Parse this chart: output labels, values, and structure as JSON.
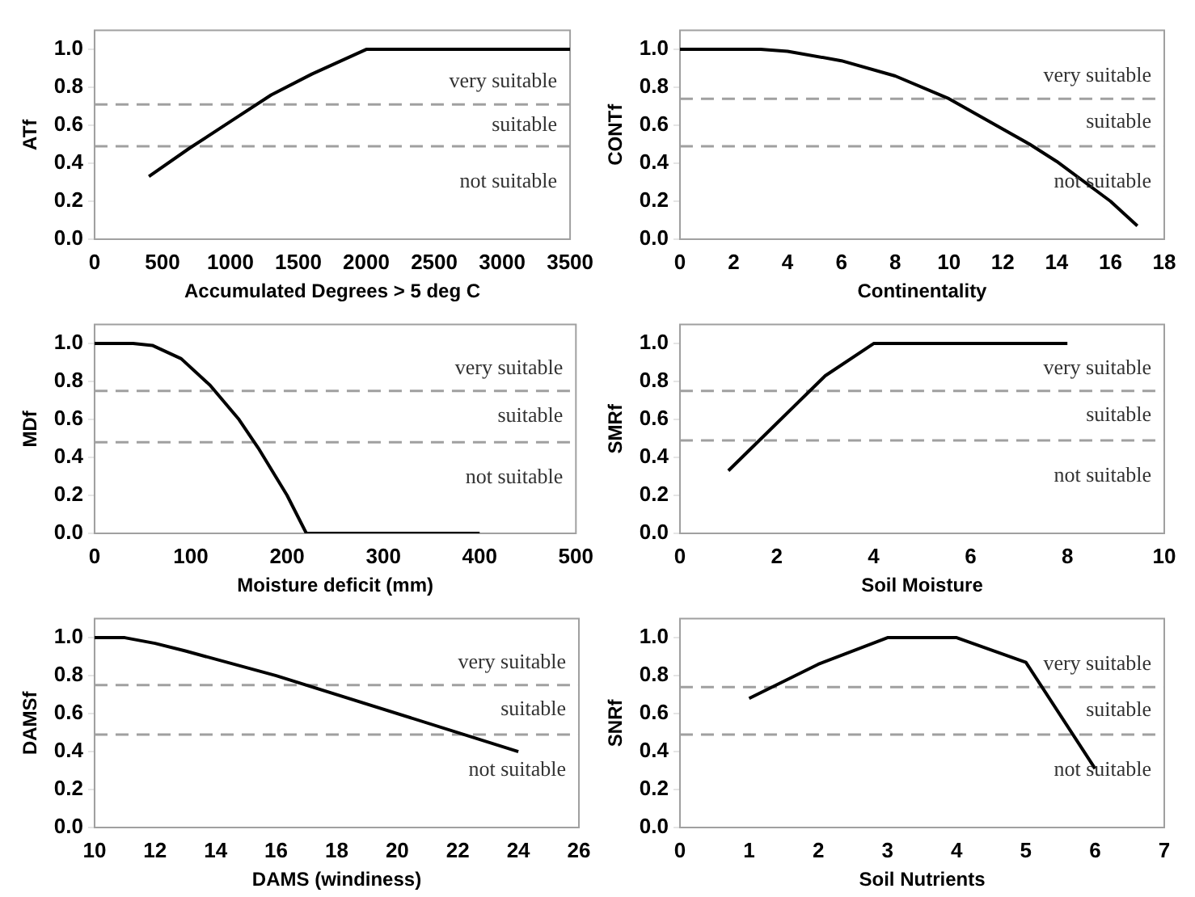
{
  "chart_data": [
    {
      "type": "line",
      "xlabel": "Accumulated Degrees > 5 deg C",
      "ylabel": "ATf",
      "color": "#000000",
      "marker": "none",
      "grid": false,
      "x": [
        400,
        700,
        1000,
        1300,
        1600,
        2000,
        3500
      ],
      "values": [
        0.33,
        0.48,
        0.62,
        0.76,
        0.87,
        1.0,
        1.0
      ],
      "xlim": [
        0,
        3500
      ],
      "xticks": [
        0,
        500,
        1000,
        1500,
        2000,
        2500,
        3000,
        3500
      ],
      "ylim": [
        0,
        1.1
      ],
      "yticks": [
        {
          "value": 0,
          "label": "0.0"
        },
        {
          "value": 0.2,
          "label": "0.2"
        },
        {
          "value": 0.4,
          "label": "0.4"
        },
        {
          "value": 0.6,
          "label": "0.6"
        },
        {
          "value": 0.8,
          "label": "0.8"
        },
        {
          "value": 1,
          "label": "1.0"
        }
      ],
      "ref_lines": [
        {
          "axis": "y",
          "value": 0.71,
          "color": "#a0a0a0",
          "line_style": "dashed"
        },
        {
          "axis": "y",
          "value": 0.49,
          "color": "#a0a0a0",
          "line_style": "dashed"
        }
      ],
      "annotations": [
        "very suitable",
        "suitable",
        "not suitable"
      ]
    },
    {
      "type": "line",
      "xlabel": "Continentality",
      "ylabel": "CONTf",
      "color": "#000000",
      "marker": "none",
      "grid": false,
      "x": [
        0,
        3,
        4,
        6,
        8,
        10,
        12,
        13,
        14,
        16,
        17
      ],
      "values": [
        1.0,
        1.0,
        0.99,
        0.94,
        0.86,
        0.74,
        0.58,
        0.5,
        0.41,
        0.2,
        0.07
      ],
      "xlim": [
        0,
        18
      ],
      "xticks": [
        0,
        2,
        4,
        6,
        8,
        10,
        12,
        14,
        16,
        18
      ],
      "ylim": [
        0,
        1.1
      ],
      "yticks": [
        {
          "value": 0,
          "label": "0.0"
        },
        {
          "value": 0.2,
          "label": "0.2"
        },
        {
          "value": 0.4,
          "label": "0.4"
        },
        {
          "value": 0.6,
          "label": "0.6"
        },
        {
          "value": 0.8,
          "label": "0.8"
        },
        {
          "value": 1,
          "label": "1.0"
        }
      ],
      "ref_lines": [
        {
          "axis": "y",
          "value": 0.74,
          "color": "#a0a0a0",
          "line_style": "dashed"
        },
        {
          "axis": "y",
          "value": 0.49,
          "color": "#a0a0a0",
          "line_style": "dashed"
        }
      ],
      "annotations": [
        "very suitable",
        "suitable",
        "not suitable"
      ]
    },
    {
      "type": "line",
      "xlabel": "Moisture deficit (mm)",
      "ylabel": "MDf",
      "color": "#000000",
      "marker": "none",
      "grid": false,
      "x": [
        0,
        40,
        60,
        90,
        120,
        150,
        170,
        200,
        220,
        400
      ],
      "values": [
        1.0,
        1.0,
        0.99,
        0.92,
        0.78,
        0.6,
        0.45,
        0.2,
        0.0,
        0.0
      ],
      "xlim": [
        0,
        500
      ],
      "xticks": [
        0,
        100,
        200,
        300,
        400,
        500
      ],
      "ylim": [
        0,
        1.1
      ],
      "yticks": [
        {
          "value": 0,
          "label": "0.0"
        },
        {
          "value": 0.2,
          "label": "0.2"
        },
        {
          "value": 0.4,
          "label": "0.4"
        },
        {
          "value": 0.6,
          "label": "0.6"
        },
        {
          "value": 0.8,
          "label": "0.8"
        },
        {
          "value": 1,
          "label": "1.0"
        }
      ],
      "ref_lines": [
        {
          "axis": "y",
          "value": 0.75,
          "color": "#a0a0a0",
          "line_style": "dashed"
        },
        {
          "axis": "y",
          "value": 0.48,
          "color": "#a0a0a0",
          "line_style": "dashed"
        }
      ],
      "annotations": [
        "very suitable",
        "suitable",
        "not suitable"
      ]
    },
    {
      "type": "line",
      "xlabel": "Soil Moisture",
      "ylabel": "SMRf",
      "color": "#000000",
      "marker": "none",
      "grid": false,
      "x": [
        1,
        2,
        3,
        4,
        8
      ],
      "values": [
        0.33,
        0.58,
        0.83,
        1.0,
        1.0
      ],
      "xlim": [
        0,
        10
      ],
      "xticks": [
        0,
        2,
        4,
        6,
        8,
        10
      ],
      "ylim": [
        0,
        1.1
      ],
      "yticks": [
        {
          "value": 0,
          "label": "0.0"
        },
        {
          "value": 0.2,
          "label": "0.2"
        },
        {
          "value": 0.4,
          "label": "0.4"
        },
        {
          "value": 0.6,
          "label": "0.6"
        },
        {
          "value": 0.8,
          "label": "0.8"
        },
        {
          "value": 1,
          "label": "1.0"
        }
      ],
      "ref_lines": [
        {
          "axis": "y",
          "value": 0.75,
          "color": "#a0a0a0",
          "line_style": "dashed"
        },
        {
          "axis": "y",
          "value": 0.49,
          "color": "#a0a0a0",
          "line_style": "dashed"
        }
      ],
      "annotations": [
        "very suitable",
        "suitable",
        "not suitable"
      ]
    },
    {
      "type": "line",
      "xlabel": "DAMS (windiness)",
      "ylabel": "DAMSf",
      "color": "#000000",
      "marker": "none",
      "grid": false,
      "x": [
        10,
        11,
        12,
        13,
        16,
        24
      ],
      "values": [
        1.0,
        1.0,
        0.97,
        0.93,
        0.8,
        0.4
      ],
      "xlim": [
        10,
        26
      ],
      "xticks": [
        10,
        12,
        14,
        16,
        18,
        20,
        22,
        24,
        26
      ],
      "ylim": [
        0,
        1.1
      ],
      "yticks": [
        {
          "value": 0,
          "label": "0.0"
        },
        {
          "value": 0.2,
          "label": "0.2"
        },
        {
          "value": 0.4,
          "label": "0.4"
        },
        {
          "value": 0.6,
          "label": "0.6"
        },
        {
          "value": 0.8,
          "label": "0.8"
        },
        {
          "value": 1,
          "label": "1.0"
        }
      ],
      "ref_lines": [
        {
          "axis": "y",
          "value": 0.75,
          "color": "#a0a0a0",
          "line_style": "dashed"
        },
        {
          "axis": "y",
          "value": 0.49,
          "color": "#a0a0a0",
          "line_style": "dashed"
        }
      ],
      "annotations": [
        "very suitable",
        "suitable",
        "not suitable"
      ]
    },
    {
      "type": "line",
      "xlabel": "Soil Nutrients",
      "ylabel": "SNRf",
      "color": "#000000",
      "marker": "none",
      "grid": false,
      "x": [
        1,
        2,
        3,
        4,
        5,
        6
      ],
      "values": [
        0.68,
        0.86,
        1.0,
        1.0,
        0.87,
        0.31
      ],
      "xlim": [
        0,
        7
      ],
      "xticks": [
        0,
        1,
        2,
        3,
        4,
        5,
        6,
        7
      ],
      "ylim": [
        0,
        1.1
      ],
      "yticks": [
        {
          "value": 0,
          "label": "0.0"
        },
        {
          "value": 0.2,
          "label": "0.2"
        },
        {
          "value": 0.4,
          "label": "0.4"
        },
        {
          "value": 0.6,
          "label": "0.6"
        },
        {
          "value": 0.8,
          "label": "0.8"
        },
        {
          "value": 1,
          "label": "1.0"
        }
      ],
      "ref_lines": [
        {
          "axis": "y",
          "value": 0.74,
          "color": "#a0a0a0",
          "line_style": "dashed"
        },
        {
          "axis": "y",
          "value": 0.49,
          "color": "#a0a0a0",
          "line_style": "dashed"
        }
      ],
      "annotations": [
        "very suitable",
        "suitable",
        "not suitable"
      ]
    }
  ]
}
